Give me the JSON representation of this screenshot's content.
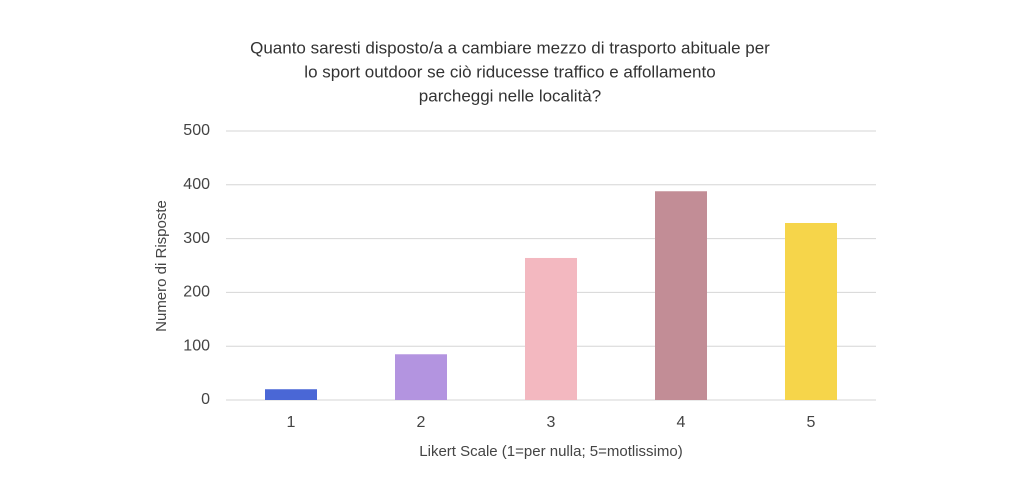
{
  "chart_data": {
    "type": "bar",
    "title": [
      "Quanto saresti disposto/a a cambiare mezzo di trasporto abituale per",
      "lo sport outdoor se ciò riducesse traffico e affollamento",
      "parcheggi nelle località?"
    ],
    "x_label": "Likert Scale (1=per nulla; 5=motlissimo)",
    "y_label": "Numero di Risposte",
    "categories": [
      "1",
      "2",
      "3",
      "4",
      "5"
    ],
    "values": [
      20,
      85,
      264,
      388,
      329
    ],
    "colors": [
      "#4a67d6",
      "#b394e0",
      "#f3b8c0",
      "#c28d96",
      "#f6d54a"
    ],
    "ylim": [
      0,
      500
    ],
    "yticks": [
      0,
      100,
      200,
      300,
      400,
      500
    ],
    "grid": true
  }
}
